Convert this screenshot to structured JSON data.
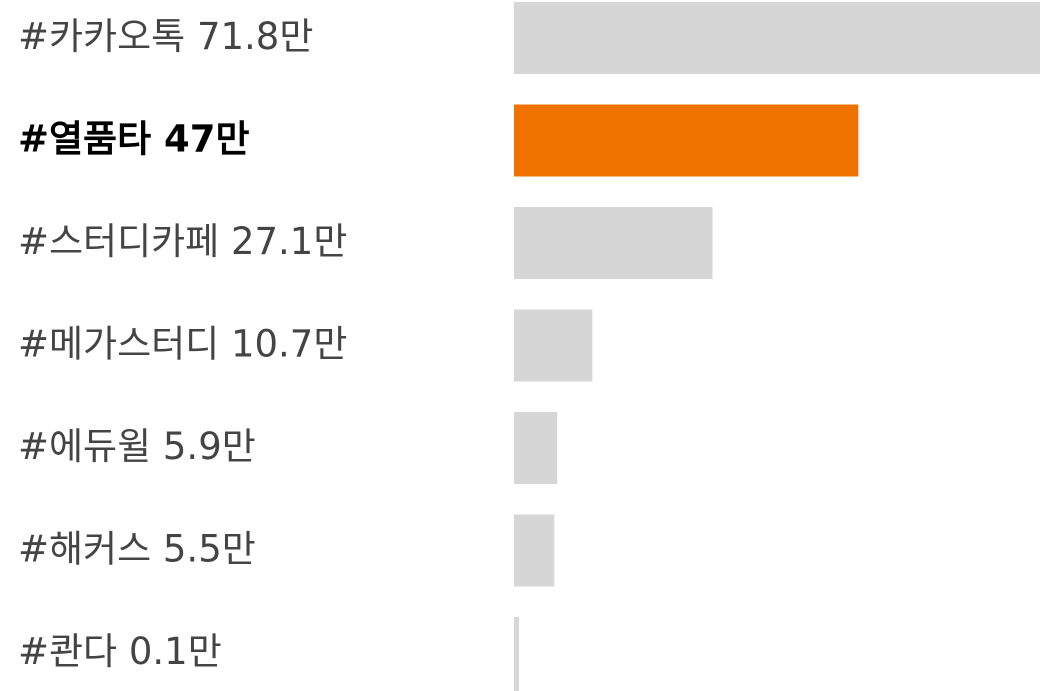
{
  "chart_data": {
    "type": "bar",
    "orientation": "horizontal",
    "categories": [
      "#카카오톡",
      "#열품타",
      "#스터디카페",
      "#메가스터디",
      "#에듀윌",
      "#해커스",
      "#콴다"
    ],
    "values": [
      71.8,
      47,
      27.1,
      10.7,
      5.9,
      5.5,
      0.1
    ],
    "value_labels": [
      "71.8만",
      "47만",
      "27.1만",
      "10.7만",
      "5.9만",
      "5.5만",
      "0.1만"
    ],
    "color": "#d6d6d6",
    "highlight": "#열품타",
    "highlight_color": "#f07300"
  }
}
